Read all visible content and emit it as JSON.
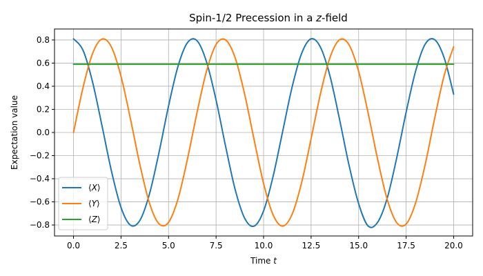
{
  "chart_data": {
    "type": "line",
    "title": "Spin-1/2 Precession in a z-field",
    "title_plain": "Spin-1/2 Precession in a ",
    "title_italic": "z",
    "title_suffix": "-field",
    "xlabel_plain": "Time ",
    "xlabel_italic": "t",
    "ylabel": "Expectation value",
    "xlim": [
      -1.0,
      21.0
    ],
    "ylim": [
      -0.895,
      0.895
    ],
    "xticks": [
      0.0,
      2.5,
      5.0,
      7.5,
      10.0,
      12.5,
      15.0,
      17.5,
      20.0
    ],
    "xtick_labels": [
      "0.0",
      "2.5",
      "5.0",
      "7.5",
      "10.0",
      "12.5",
      "15.0",
      "17.5",
      "20.0"
    ],
    "yticks": [
      -0.8,
      -0.6,
      -0.4,
      -0.2,
      0.0,
      0.2,
      0.4,
      0.6,
      0.8
    ],
    "ytick_labels": [
      "−0.8",
      "−0.6",
      "−0.4",
      "−0.2",
      "0.0",
      "0.2",
      "0.4",
      "0.6",
      "0.8"
    ],
    "grid": true,
    "legend_position": "lower-left",
    "x": [
      0.0,
      0.5,
      1.0,
      1.5,
      2.0,
      2.5,
      3.0,
      3.5,
      4.0,
      4.5,
      5.0,
      5.5,
      6.0,
      6.5,
      7.0,
      7.5,
      8.0,
      8.5,
      9.0,
      9.5,
      10.0,
      10.5,
      11.0,
      11.5,
      12.0,
      12.5,
      13.0,
      13.5,
      14.0,
      14.5,
      15.0,
      15.5,
      16.0,
      16.5,
      17.0,
      17.5,
      18.0,
      18.5,
      19.0,
      19.5,
      20.0
    ],
    "series": [
      {
        "name_open": "⟨",
        "name_var": "X",
        "name_close": "⟩",
        "color": "#1f77b4",
        "values": [
          0.81,
          0.711,
          0.438,
          0.057,
          -0.337,
          -0.649,
          -0.802,
          -0.758,
          -0.529,
          -0.171,
          0.229,
          0.574,
          0.778,
          0.793,
          0.61,
          0.281,
          -0.118,
          -0.49,
          -0.74,
          -0.81,
          -0.678,
          -0.38,
          0.006,
          0.392,
          0.683,
          0.81,
          0.735,
          0.484,
          0.111,
          -0.286,
          -0.615,
          -0.809,
          -0.777,
          -0.571,
          -0.223,
          0.175,
          0.531,
          0.763,
          0.803,
          0.646,
          0.331
        ]
      },
      {
        "name_open": "⟨",
        "name_var": "Y",
        "name_close": "⟩",
        "color": "#ff7f0e",
        "values": [
          0.0,
          0.388,
          0.682,
          0.808,
          0.737,
          0.485,
          0.114,
          -0.284,
          -0.613,
          -0.79,
          -0.777,
          -0.573,
          -0.226,
          0.173,
          0.532,
          0.761,
          0.801,
          0.648,
          0.334,
          -0.061,
          -0.441,
          -0.712,
          -0.81,
          -0.708,
          -0.435,
          -0.054,
          0.34,
          0.651,
          0.802,
          0.757,
          0.528,
          0.169,
          -0.231,
          -0.576,
          -0.779,
          -0.792,
          -0.608,
          -0.279,
          0.121,
          0.492,
          0.742
        ]
      },
      {
        "name_open": "⟨",
        "name_var": "Z",
        "name_close": "⟩",
        "color": "#2ca02c",
        "values": [
          0.59,
          0.59,
          0.59,
          0.59,
          0.59,
          0.59,
          0.59,
          0.59,
          0.59,
          0.59,
          0.59,
          0.59,
          0.59,
          0.59,
          0.59,
          0.59,
          0.59,
          0.59,
          0.59,
          0.59,
          0.59,
          0.59,
          0.59,
          0.59,
          0.59,
          0.59,
          0.59,
          0.59,
          0.59,
          0.59,
          0.59,
          0.59,
          0.59,
          0.59,
          0.59,
          0.59,
          0.59,
          0.59,
          0.59,
          0.59,
          0.59
        ]
      }
    ]
  }
}
